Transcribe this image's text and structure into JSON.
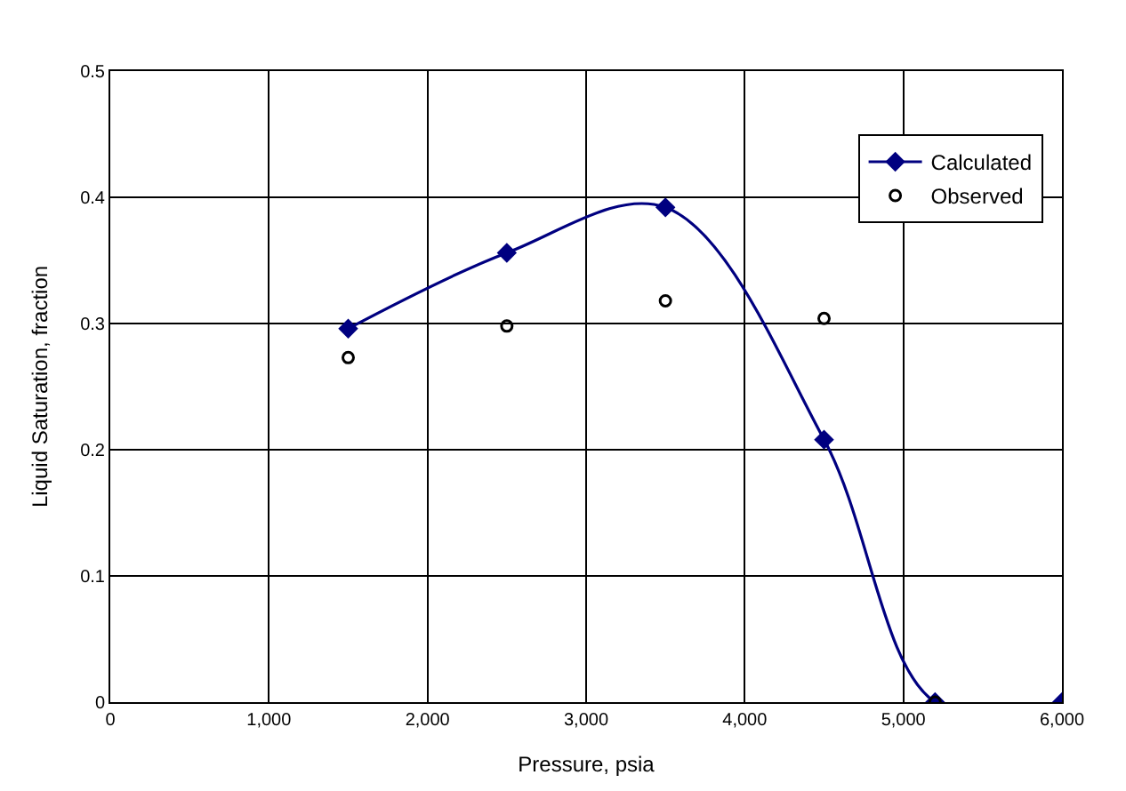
{
  "chart_data": {
    "type": "line",
    "xlabel": "Pressure, psia",
    "ylabel": "Liquid Saturation, fraction",
    "xlim": [
      0,
      6000
    ],
    "xticks": [
      {
        "value": 0,
        "label": "0"
      },
      {
        "value": 1000,
        "label": "1,000"
      },
      {
        "value": 2000,
        "label": "2,000"
      },
      {
        "value": 3000,
        "label": "3,000"
      },
      {
        "value": 4000,
        "label": "4,000"
      },
      {
        "value": 5000,
        "label": "5,000"
      },
      {
        "value": 6000,
        "label": "6,000"
      }
    ],
    "ylim": [
      0,
      0.5
    ],
    "yticks": [
      0,
      0.1,
      0.2,
      0.3,
      0.4,
      0.5
    ],
    "grid": true,
    "legend": "top right",
    "series": [
      {
        "name": "Calculated",
        "marker": "diamond",
        "color": "#000080",
        "x": [
          1500,
          2500,
          3500,
          4500,
          5200,
          6000
        ],
        "values": [
          0.296,
          0.356,
          0.392,
          0.208,
          0,
          0
        ]
      },
      {
        "name": "Observed",
        "type": "scatter",
        "marker": "circle",
        "color": "#000000",
        "x": [
          1500,
          2500,
          3500,
          4500,
          5200
        ],
        "values": [
          0.273,
          0.298,
          0.318,
          0.304,
          0
        ]
      }
    ]
  }
}
